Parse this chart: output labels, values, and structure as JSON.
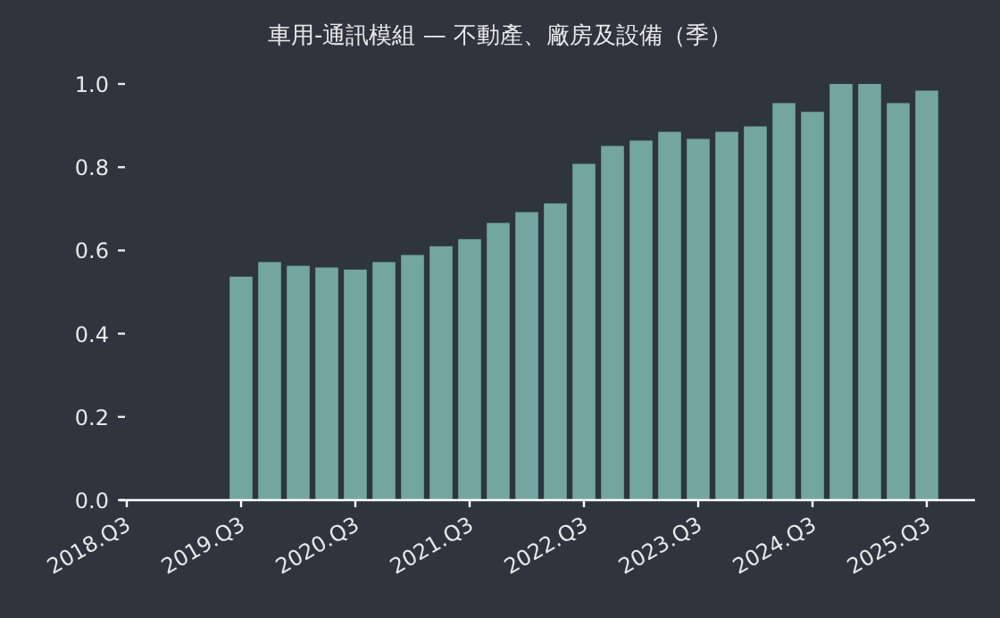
{
  "chart_data": {
    "type": "bar",
    "title": "車用-通訊模組 — 不動產、廠房及設備（季）",
    "categories": [
      "2018.Q3",
      null,
      null,
      null,
      "2019.Q3",
      null,
      null,
      null,
      "2020.Q3",
      null,
      null,
      null,
      "2021.Q3",
      null,
      null,
      null,
      "2022.Q3",
      null,
      null,
      null,
      "2023.Q3",
      null,
      null,
      null,
      "2024.Q3",
      null,
      null,
      null,
      "2025.Q3"
    ],
    "values": [
      null,
      null,
      null,
      null,
      0.537,
      0.572,
      0.563,
      0.559,
      0.554,
      0.572,
      0.589,
      0.61,
      0.627,
      0.666,
      0.692,
      0.713,
      0.808,
      0.851,
      0.864,
      0.885,
      0.868,
      0.885,
      0.898,
      0.954,
      0.933,
      1.0,
      1.0,
      0.954,
      0.984
    ],
    "color": "#73a6a0",
    "ylim": [
      0,
      1.0
    ],
    "yticks": [
      {
        "value": 0,
        "label": "0.0"
      },
      {
        "value": 0.2,
        "label": "0.2"
      },
      {
        "value": 0.4,
        "label": "0.4"
      },
      {
        "value": 0.6,
        "label": "0.6"
      },
      {
        "value": 0.8,
        "label": "0.8"
      },
      {
        "value": 1.0,
        "label": "1.0"
      }
    ],
    "grid": false
  }
}
